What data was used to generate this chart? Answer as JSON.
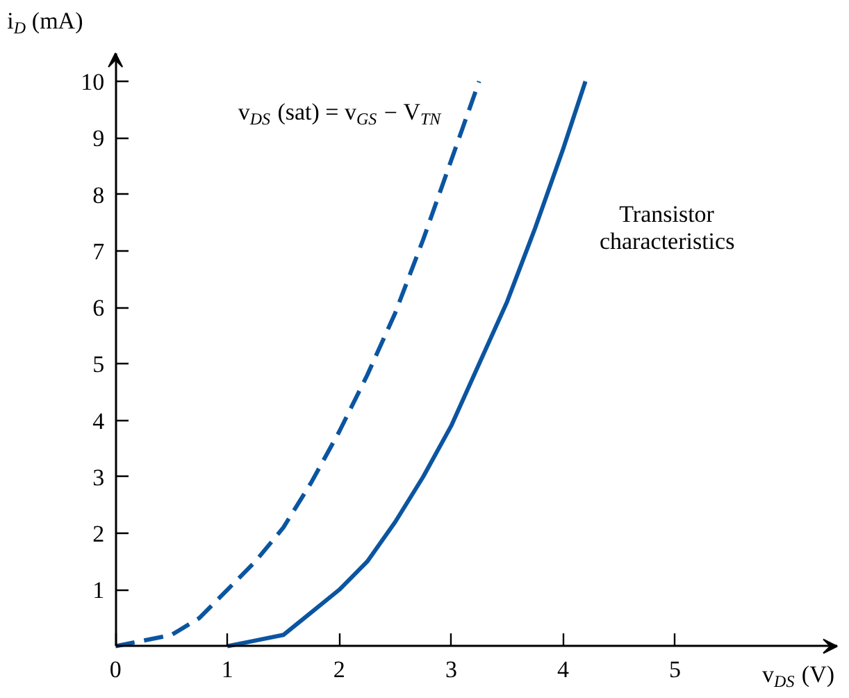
{
  "chart_data": {
    "type": "line",
    "xlabel": "v$_{DS}$ (V)",
    "ylabel": "i$_{D}$ (mA)",
    "xlim": [
      0,
      6.45
    ],
    "ylim": [
      0,
      10.5
    ],
    "xticks": [
      0,
      1,
      2,
      3,
      4,
      5
    ],
    "yticks": [
      1,
      2,
      3,
      4,
      5,
      6,
      7,
      8,
      9,
      10
    ],
    "grid": false,
    "marker": "none",
    "series": [
      {
        "name": "v$_{DS}$ (sat) = v$_{GS}$ − V$_{TN}$",
        "color": "#0b55a0",
        "line_style": "dashed",
        "x": [
          0,
          0.25,
          0.5,
          0.75,
          1,
          1.25,
          1.5,
          1.75,
          2,
          2.25,
          2.5,
          2.75,
          3,
          3.25
        ],
        "values": [
          0,
          0.1,
          0.2,
          0.5,
          1.0,
          1.5,
          2.1,
          2.9,
          3.8,
          4.8,
          5.9,
          7.2,
          8.6,
          10.0
        ]
      },
      {
        "name": "Transistor\ncharacteristics",
        "color": "#0b55a0",
        "line_style": "solid",
        "x": [
          1,
          1.25,
          1.5,
          1.75,
          2,
          2.25,
          2.5,
          2.75,
          3,
          3.25,
          3.5,
          3.75,
          4,
          4.2
        ],
        "values": [
          0,
          0.1,
          0.2,
          0.6,
          1.0,
          1.5,
          2.2,
          3.0,
          3.9,
          5.0,
          6.1,
          7.4,
          8.8,
          10.0
        ]
      }
    ]
  }
}
